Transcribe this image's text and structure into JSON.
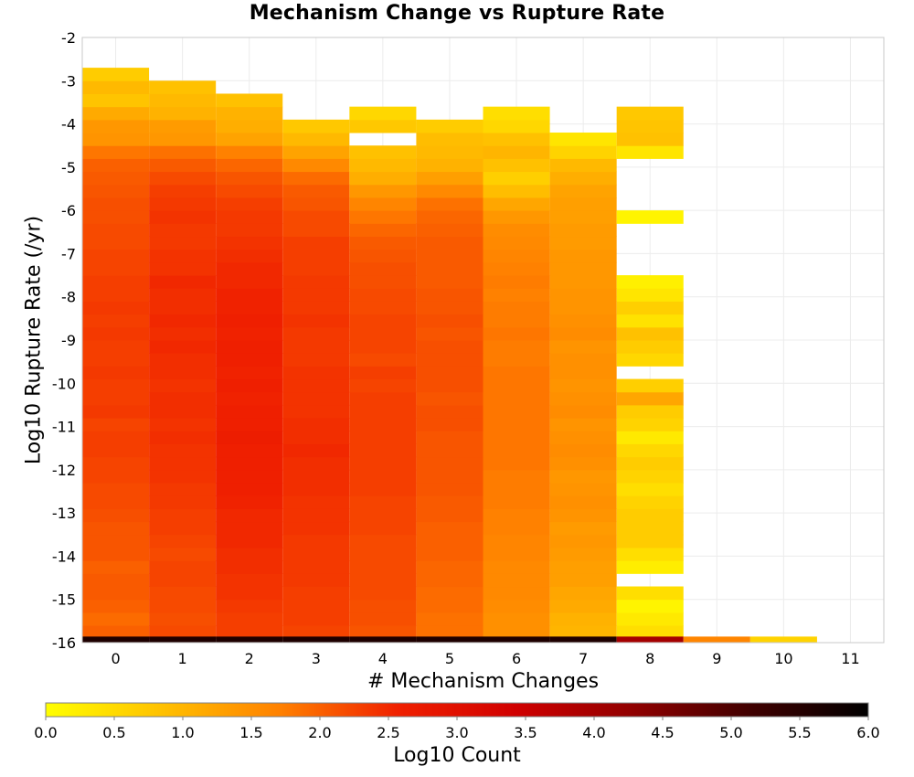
{
  "chart_data": {
    "type": "heatmap",
    "title": "Mechanism Change vs Rupture Rate",
    "xlabel": "# Mechanism Changes",
    "ylabel": "Log10 Rupture Rate (/yr)",
    "colorbar_label": "Log10 Count",
    "x_ticks": [
      "0",
      "1",
      "2",
      "3",
      "4",
      "5",
      "6",
      "7",
      "8",
      "9",
      "10",
      "11"
    ],
    "y_ticks": [
      "-2",
      "-3",
      "-4",
      "-5",
      "-6",
      "-7",
      "-8",
      "-9",
      "-10",
      "-11",
      "-12",
      "-13",
      "-14",
      "-15",
      "-16"
    ],
    "colorbar_ticks": [
      "0.0",
      "0.5",
      "1.0",
      "1.5",
      "2.0",
      "2.5",
      "3.0",
      "3.5",
      "4.0",
      "4.5",
      "5.0",
      "5.5",
      "6.0"
    ],
    "xlim": [
      -0.5,
      11.5
    ],
    "ylim": [
      -16,
      -2
    ],
    "color_range": [
      0,
      6
    ],
    "colormap": [
      "#ffff00",
      "#ffc000",
      "#ff8000",
      "#f02000",
      "#d00000",
      "#900000",
      "#400000",
      "#000000"
    ],
    "grid": true,
    "bin_width": 0.3,
    "bin_starts": [
      -15.9,
      -15.6,
      -15.3,
      -15.0,
      -14.7,
      -14.4,
      -14.1,
      -13.8,
      -13.5,
      -13.2,
      -12.9,
      -12.6,
      -12.3,
      -12.0,
      -11.7,
      -11.4,
      -11.1,
      -10.8,
      -10.5,
      -10.2,
      -9.9,
      -9.6,
      -9.3,
      -9.0,
      -8.7,
      -8.4,
      -8.1,
      -7.8,
      -7.5,
      -7.2,
      -6.9,
      -6.6,
      -6.3,
      -6.0,
      -5.7,
      -5.4,
      -5.1,
      -4.8,
      -4.5,
      -4.2,
      -3.9,
      -3.6,
      -3.3,
      -3.0
    ],
    "bottom_bin": {
      "y0": -16.0,
      "y1": -15.86
    },
    "columns": [
      {
        "x": 0,
        "bottom": 5.6,
        "values": [
          2.0,
          1.9,
          2.0,
          2.05,
          2.05,
          2.0,
          2.1,
          2.1,
          2.1,
          2.15,
          2.2,
          2.2,
          2.25,
          2.25,
          2.3,
          2.3,
          2.25,
          2.35,
          2.3,
          2.3,
          2.35,
          2.3,
          2.3,
          2.35,
          2.3,
          2.35,
          2.3,
          2.3,
          2.25,
          2.25,
          2.2,
          2.2,
          2.15,
          2.15,
          2.1,
          2.05,
          2.0,
          1.8,
          1.45,
          1.4,
          1.15,
          0.8,
          0.95,
          0.7
        ]
      },
      {
        "x": 1,
        "bottom": 5.6,
        "values": [
          2.2,
          2.15,
          2.2,
          2.2,
          2.25,
          2.25,
          2.2,
          2.25,
          2.3,
          2.3,
          2.35,
          2.35,
          2.4,
          2.4,
          2.4,
          2.45,
          2.4,
          2.45,
          2.45,
          2.4,
          2.45,
          2.45,
          2.5,
          2.45,
          2.5,
          2.45,
          2.45,
          2.5,
          2.4,
          2.4,
          2.35,
          2.35,
          2.4,
          2.35,
          2.3,
          2.2,
          2.05,
          1.85,
          1.4,
          1.35,
          1.05,
          0.95,
          0.85
        ]
      },
      {
        "x": 2,
        "bottom": 5.6,
        "values": [
          2.3,
          2.3,
          2.35,
          2.4,
          2.4,
          2.45,
          2.45,
          2.5,
          2.5,
          2.5,
          2.55,
          2.6,
          2.6,
          2.6,
          2.6,
          2.65,
          2.6,
          2.6,
          2.55,
          2.6,
          2.55,
          2.6,
          2.6,
          2.55,
          2.6,
          2.55,
          2.55,
          2.5,
          2.5,
          2.45,
          2.4,
          2.35,
          2.35,
          2.3,
          2.2,
          2.1,
          1.95,
          1.7,
          1.25,
          1.1,
          1.05,
          0.85
        ]
      },
      {
        "x": 3,
        "bottom": 5.6,
        "values": [
          2.25,
          2.3,
          2.3,
          2.3,
          2.35,
          2.35,
          2.35,
          2.35,
          2.4,
          2.4,
          2.4,
          2.45,
          2.45,
          2.45,
          2.5,
          2.45,
          2.45,
          2.4,
          2.4,
          2.4,
          2.4,
          2.35,
          2.35,
          2.35,
          2.4,
          2.35,
          2.35,
          2.35,
          2.3,
          2.3,
          2.3,
          2.2,
          2.2,
          2.1,
          2.05,
          1.9,
          1.6,
          1.25,
          0.95,
          0.75
        ]
      },
      {
        "x": 4,
        "bottom": 5.6,
        "values": [
          2.1,
          2.15,
          2.15,
          2.2,
          2.2,
          2.2,
          2.2,
          2.2,
          2.25,
          2.25,
          2.25,
          2.3,
          2.3,
          2.3,
          2.3,
          2.3,
          2.3,
          2.3,
          2.3,
          2.25,
          2.3,
          2.2,
          2.25,
          2.25,
          2.25,
          2.2,
          2.2,
          2.15,
          2.15,
          2.1,
          2.05,
          1.95,
          1.8,
          1.65,
          1.4,
          1.1,
          0.95,
          0.85,
          null,
          0.75,
          0.55
        ]
      },
      {
        "x": 5,
        "bottom": 5.6,
        "values": [
          1.85,
          1.85,
          1.9,
          1.9,
          1.95,
          1.95,
          2.0,
          2.0,
          2.0,
          2.05,
          2.05,
          2.1,
          2.1,
          2.1,
          2.1,
          2.1,
          2.15,
          2.15,
          2.1,
          2.15,
          2.15,
          2.15,
          2.15,
          2.1,
          2.15,
          2.1,
          2.1,
          2.05,
          2.05,
          2.05,
          2.05,
          2.0,
          1.95,
          1.85,
          1.6,
          1.3,
          1.05,
          0.95,
          0.9,
          0.7
        ]
      },
      {
        "x": 6,
        "bottom": 5.6,
        "values": [
          1.5,
          1.5,
          1.55,
          1.6,
          1.6,
          1.6,
          1.65,
          1.65,
          1.7,
          1.7,
          1.75,
          1.75,
          1.75,
          1.8,
          1.8,
          1.8,
          1.8,
          1.8,
          1.8,
          1.8,
          1.8,
          1.75,
          1.75,
          1.8,
          1.75,
          1.75,
          1.7,
          1.75,
          1.7,
          1.65,
          1.6,
          1.55,
          1.4,
          1.2,
          0.9,
          0.65,
          0.85,
          1.0,
          0.85,
          0.55,
          0.45
        ]
      },
      {
        "x": 7,
        "bottom": 5.6,
        "values": [
          1.0,
          1.05,
          1.15,
          1.2,
          1.3,
          1.3,
          1.35,
          1.4,
          1.35,
          1.45,
          1.5,
          1.45,
          1.4,
          1.5,
          1.55,
          1.5,
          1.45,
          1.55,
          1.5,
          1.45,
          1.5,
          1.5,
          1.45,
          1.55,
          1.5,
          1.45,
          1.45,
          1.4,
          1.4,
          1.4,
          1.35,
          1.35,
          1.3,
          1.3,
          1.25,
          1.1,
          0.95,
          0.6,
          0.35
        ]
      },
      {
        "x": 8,
        "bottom": 4.0,
        "values": [
          0.45,
          0.3,
          0.15,
          0.45,
          null,
          0.25,
          0.45,
          0.7,
          0.7,
          0.7,
          0.6,
          0.45,
          0.6,
          0.7,
          0.55,
          0.3,
          0.6,
          0.7,
          1.2,
          0.65,
          null,
          0.55,
          0.7,
          0.85,
          0.4,
          0.65,
          0.35,
          0.2,
          null,
          null,
          null,
          null,
          0.15,
          null,
          null,
          null,
          null,
          0.35,
          0.85,
          0.8,
          0.75
        ]
      },
      {
        "x": 9,
        "bottom": 1.65,
        "values": []
      },
      {
        "x": 10,
        "bottom": 0.6,
        "values": []
      },
      {
        "x": 11,
        "bottom": null,
        "values": []
      }
    ]
  }
}
